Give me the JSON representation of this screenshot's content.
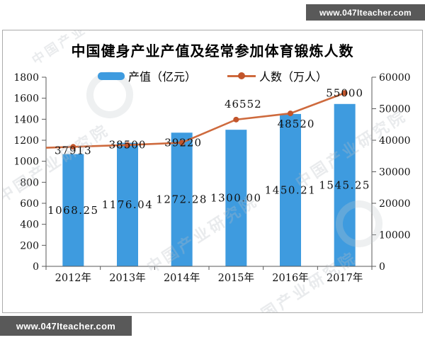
{
  "banner_top": {
    "text": "www.047Iteacher.com"
  },
  "banner_bottom": {
    "text": "www.047Iteacher.com"
  },
  "watermark": {
    "text": "中国产业研究院"
  },
  "chart_data": {
    "type": "bar+line combo",
    "title": "中国健身产业产值及经常参加体育锻炼人数",
    "categories": [
      "2012年",
      "2013年",
      "2014年",
      "2015年",
      "2016年",
      "2017年"
    ],
    "series": [
      {
        "name": "产值（亿元）",
        "type": "bar",
        "axis": "left",
        "color": "#3e9bdf",
        "values": [
          1068.25,
          1176.04,
          1272.28,
          1300.0,
          1450.21,
          1545.25
        ],
        "labels": [
          "1068.25",
          "1176.04",
          "1272.28",
          "1300.00",
          "1450.21",
          "1545.25"
        ]
      },
      {
        "name": "人数（万人）",
        "type": "line",
        "axis": "right",
        "color": "#ce6a3d",
        "marker_color": "#c2552b",
        "values": [
          37913,
          38500,
          39220,
          46552,
          48520,
          55000
        ],
        "labels": [
          "37913",
          "38500",
          "39220",
          "46552",
          "48520",
          "55000"
        ]
      }
    ],
    "left_axis": {
      "min": 0,
      "max": 1800,
      "step": 200,
      "ticks": [
        "0",
        "200",
        "400",
        "600",
        "800",
        "1000",
        "1200",
        "1400",
        "1600",
        "1800"
      ]
    },
    "right_axis": {
      "min": 0,
      "max": 60000,
      "step": 10000,
      "ticks": [
        "0",
        "10000",
        "20000",
        "30000",
        "40000",
        "50000",
        "60000"
      ]
    },
    "legend_position": "top",
    "grid": false
  }
}
